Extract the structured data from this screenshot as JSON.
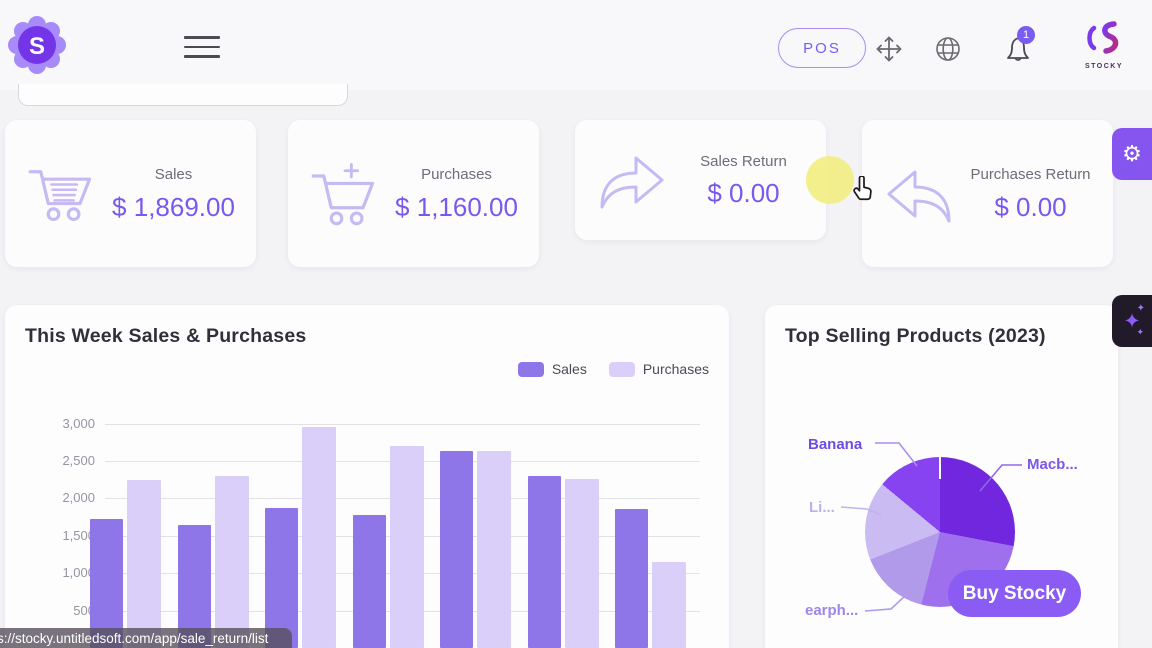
{
  "colors": {
    "accent": "#7c5cf0",
    "value_text": "#7a58ee",
    "icon_stroke": "#c5baf3",
    "grid_line": "#e2e1e7",
    "tick_text": "#9695a0",
    "badge_bg": "#7a5cf0",
    "gear_bg": "#8655f0",
    "sparkle_bg": "#211a29",
    "highlight": "#f3ee83",
    "buy_bg": "#8a5cf4",
    "brand_purple": "#7c3aed",
    "brand_pink": "#bb2a80",
    "status_bg": "rgba(86,80,92,0.8)"
  },
  "header": {
    "pos_label": "POS",
    "bell_badge": "1",
    "brand_caption": "STOCKY"
  },
  "stats": {
    "cards": [
      {
        "icon": "cart-icon",
        "label": "Sales",
        "value": "$ 1,869.00"
      },
      {
        "icon": "cart-plus-icon",
        "label": "Purchases",
        "value": "$ 1,160.00"
      },
      {
        "icon": "arrow-right-icon",
        "label": "Sales Return",
        "value": "$ 0.00"
      },
      {
        "icon": "arrow-left-icon",
        "label": "Purchases Return",
        "value": "$ 0.00"
      }
    ]
  },
  "chart_data": [
    {
      "type": "bar",
      "title": "This Week Sales & Purchases",
      "categories": [
        "",
        "",
        "",
        "",
        "",
        "",
        ""
      ],
      "series": [
        {
          "name": "Sales",
          "color": "#8e76e9",
          "values": [
            1730,
            1640,
            1870,
            1780,
            2640,
            2300,
            1860
          ]
        },
        {
          "name": "Purchases",
          "color": "#d9cff8",
          "values": [
            2240,
            2300,
            2950,
            2700,
            2630,
            2260,
            1150
          ]
        }
      ],
      "ylim": [
        0,
        3000
      ],
      "yticks": [
        {
          "v": 3000,
          "label": "3,000"
        },
        {
          "v": 2500,
          "label": "2,500"
        },
        {
          "v": 2000,
          "label": "2,000"
        },
        {
          "v": 1500,
          "label": "1,500"
        },
        {
          "v": 1000,
          "label": "1,000"
        },
        {
          "v": 500,
          "label": "500"
        }
      ],
      "grid": "horizontal",
      "legend_position": "top-right"
    },
    {
      "type": "pie",
      "title": "Top Selling Products (2023)",
      "slices": [
        {
          "label": "Macb...",
          "pct": 28,
          "color": "#7127dd",
          "label_color": "#7e57e8"
        },
        {
          "label": "",
          "pct": 26,
          "color": "#9e70ee",
          "label_color": ""
        },
        {
          "label": "earph...",
          "pct": 15,
          "color": "#b29aea",
          "label_color": "#9f86ea"
        },
        {
          "label": "Li...",
          "pct": 17,
          "color": "#cabbf2",
          "label_color": "#bfaef0"
        },
        {
          "label": "Banana",
          "pct": 14,
          "color": "#8743ef",
          "label_color": "#6f4ce0"
        }
      ]
    }
  ],
  "pie_card": {
    "buy_button": "Buy Stocky"
  },
  "status_bar": {
    "url": "s://stocky.untitledsoft.com/app/sale_return/list"
  }
}
